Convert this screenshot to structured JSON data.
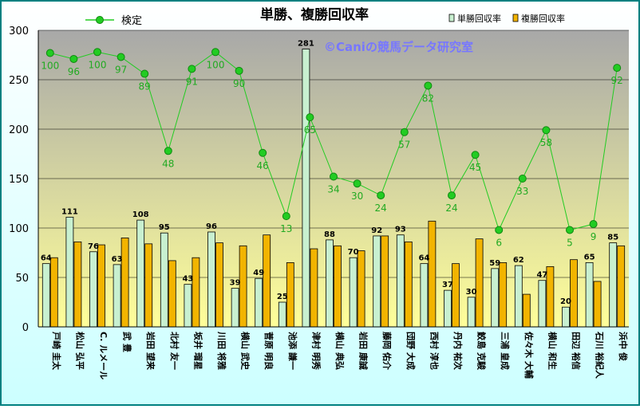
{
  "chart_data": {
    "type": "bar",
    "title": "単勝、複勝回収率",
    "watermark": "©Caniの競馬データ研究室",
    "ylim": [
      0,
      300
    ],
    "yticks": [
      0,
      50,
      100,
      150,
      200,
      250,
      300
    ],
    "grid": true,
    "legend": "top",
    "categories": [
      "戸崎 圭太",
      "松山 弘平",
      "C. ルメール",
      "武 豊",
      "岩田 望来",
      "北村 友一",
      "坂井 瑠星",
      "川田 将雅",
      "横山 武史",
      "菅原 明良",
      "池添 謙一",
      "津村 明秀",
      "横山 典弘",
      "岩田 康誠",
      "藤岡 佑介",
      "団野 大成",
      "西村 淳也",
      "丹内 祐次",
      "鮫島 克駿",
      "三浦 皇成",
      "佐々木 大輔",
      "横山 和生",
      "田辺 裕信",
      "石川 裕紀人",
      "浜中 俊"
    ],
    "series": [
      {
        "name": "単勝回収率",
        "kind": "bar",
        "color": "#c8f0d0",
        "values": [
          64,
          111,
          76,
          63,
          108,
          95,
          43,
          96,
          39,
          49,
          25,
          281,
          88,
          70,
          92,
          93,
          64,
          37,
          30,
          59,
          62,
          47,
          20,
          65,
          85
        ]
      },
      {
        "name": "複勝回収率",
        "kind": "bar",
        "color": "#f2b400",
        "values": [
          70,
          86,
          83,
          90,
          84,
          67,
          70,
          85,
          82,
          93,
          65,
          79,
          82,
          77,
          92,
          86,
          107,
          64,
          89,
          65,
          33,
          61,
          68,
          46,
          82
        ]
      },
      {
        "name": "検定",
        "kind": "line",
        "color": "#22cc22",
        "values": [
          277,
          271,
          278,
          273,
          256,
          178,
          261,
          278,
          259,
          176,
          112,
          212,
          152,
          145,
          133,
          197,
          244,
          133,
          174,
          98,
          150,
          199,
          98,
          104,
          262
        ],
        "labels": [
          100,
          96,
          100,
          97,
          89,
          48,
          91,
          100,
          90,
          46,
          13,
          65,
          34,
          30,
          24,
          57,
          82,
          24,
          45,
          6,
          33,
          58,
          5,
          9,
          92
        ]
      }
    ],
    "colors": {
      "frame": "#008080",
      "plot_top": "#a8a8a8",
      "plot_bottom": "#ffff99",
      "outer_top": "#ffffff",
      "outer_bottom": "#ccffff",
      "line_label": "#22aa22",
      "watermark": "#7777ff"
    }
  }
}
